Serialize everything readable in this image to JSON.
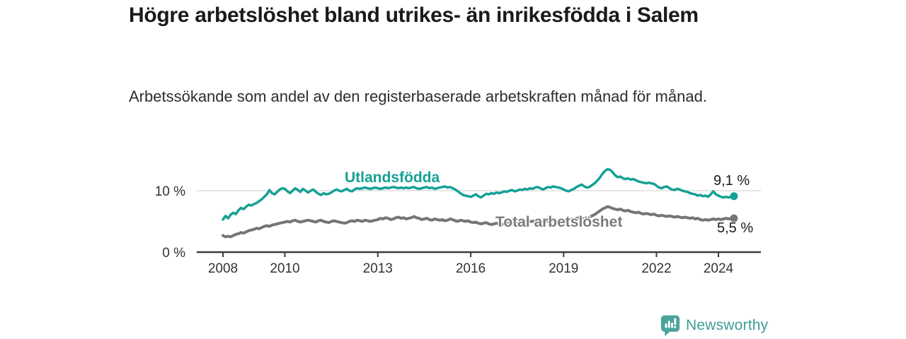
{
  "header": {
    "title": "Högre arbetslöshet bland utrikes- än inrikesfödda i Salem",
    "subtitle": "Arbetssökande som andel av den registerbaserade arbetskraften månad för månad."
  },
  "colors": {
    "series_foreign": "#16A195",
    "series_total": "#757579",
    "grid": "#d8d8d8",
    "axis": "#3d3d3d",
    "title_text": "#1a1a1a",
    "logo": "#4BA39B",
    "wordmark": "#3F9D96"
  },
  "chart_data": {
    "type": "line",
    "title": "",
    "xlabel": "",
    "ylabel": "",
    "x_unit": "year-month",
    "x_start_year": 2008,
    "points_per_year": 12,
    "x_end": "2024-07",
    "xlim": [
      2007.2,
      2025.3
    ],
    "ylim": [
      0,
      15
    ],
    "grid_values": [
      10
    ],
    "y_ticks": [
      {
        "value": 0,
        "label": "0 %"
      },
      {
        "value": 10,
        "label": "10 %"
      }
    ],
    "x_ticks": [
      {
        "value": 2008,
        "label": "2008"
      },
      {
        "value": 2010,
        "label": "2010"
      },
      {
        "value": 2013,
        "label": "2013"
      },
      {
        "value": 2016,
        "label": "2016"
      },
      {
        "value": 2019,
        "label": "2019"
      },
      {
        "value": 2022,
        "label": "2022"
      },
      {
        "value": 2024,
        "label": "2024"
      }
    ],
    "series": [
      {
        "name": "Utlandsfödda",
        "color": "#16A195",
        "width": 3.5,
        "end_label": "9,1 %",
        "end_value": 9.1,
        "values": [
          5.3,
          5.9,
          5.5,
          6.1,
          6.4,
          6.2,
          6.8,
          7.2,
          7.0,
          7.4,
          7.7,
          7.6,
          7.8,
          8.0,
          8.3,
          8.6,
          9.0,
          9.4,
          10.1,
          9.6,
          9.4,
          9.8,
          10.2,
          10.4,
          10.3,
          9.9,
          9.6,
          10.0,
          10.4,
          10.1,
          9.8,
          10.3,
          10.0,
          9.7,
          10.0,
          10.2,
          9.8,
          9.5,
          9.3,
          9.6,
          9.4,
          9.5,
          9.7,
          10.0,
          10.2,
          10.0,
          9.9,
          10.1,
          10.3,
          10.0,
          9.9,
          10.2,
          10.4,
          10.3,
          10.4,
          10.5,
          10.4,
          10.3,
          10.4,
          10.5,
          10.4,
          10.3,
          10.4,
          10.5,
          10.4,
          10.5,
          10.6,
          10.5,
          10.4,
          10.5,
          10.4,
          10.5,
          10.4,
          10.5,
          10.6,
          10.4,
          10.3,
          10.4,
          10.5,
          10.6,
          10.4,
          10.5,
          10.3,
          10.4,
          10.5,
          10.6,
          10.7,
          10.5,
          10.6,
          10.4,
          10.2,
          9.9,
          9.6,
          9.3,
          9.2,
          9.1,
          9.0,
          9.2,
          9.4,
          9.1,
          8.9,
          9.2,
          9.5,
          9.4,
          9.6,
          9.5,
          9.7,
          9.6,
          9.7,
          9.9,
          9.8,
          10.0,
          10.1,
          9.9,
          10.0,
          10.2,
          10.1,
          10.3,
          10.2,
          10.4,
          10.3,
          10.5,
          10.6,
          10.4,
          10.2,
          10.4,
          10.6,
          10.5,
          10.7,
          10.6,
          10.5,
          10.4,
          10.2,
          10.0,
          9.9,
          10.1,
          10.3,
          10.6,
          10.8,
          11.0,
          10.7,
          10.5,
          10.6,
          10.9,
          11.2,
          11.6,
          12.1,
          12.7,
          13.2,
          13.5,
          13.4,
          13.0,
          12.5,
          12.2,
          12.3,
          12.0,
          11.9,
          12.0,
          11.8,
          11.9,
          11.7,
          11.5,
          11.4,
          11.3,
          11.2,
          11.3,
          11.2,
          11.1,
          10.8,
          10.5,
          10.4,
          10.6,
          10.7,
          10.4,
          10.2,
          10.1,
          10.3,
          10.2,
          10.0,
          9.9,
          9.8,
          9.6,
          9.5,
          9.4,
          9.2,
          9.3,
          9.1,
          9.2,
          9.0,
          9.4,
          9.9,
          9.4,
          9.2,
          9.0,
          8.9,
          9.0,
          8.9,
          9.0,
          9.1
        ]
      },
      {
        "name": "Total arbetslöshet",
        "color": "#757579",
        "width": 4,
        "end_label": "5,5 %",
        "end_value": 5.5,
        "values": [
          2.7,
          2.5,
          2.6,
          2.5,
          2.7,
          2.9,
          3.0,
          3.2,
          3.1,
          3.3,
          3.5,
          3.6,
          3.7,
          3.9,
          3.8,
          4.0,
          4.2,
          4.3,
          4.2,
          4.4,
          4.5,
          4.6,
          4.7,
          4.8,
          4.9,
          5.0,
          4.9,
          5.1,
          5.2,
          5.0,
          4.9,
          5.0,
          5.1,
          5.2,
          5.1,
          5.0,
          4.9,
          5.1,
          5.2,
          5.0,
          4.9,
          4.8,
          5.0,
          5.1,
          5.0,
          4.9,
          4.8,
          4.7,
          4.8,
          5.0,
          5.1,
          5.0,
          5.2,
          5.1,
          5.0,
          5.2,
          5.1,
          5.0,
          5.1,
          5.2,
          5.3,
          5.5,
          5.4,
          5.6,
          5.5,
          5.3,
          5.4,
          5.6,
          5.7,
          5.5,
          5.6,
          5.4,
          5.5,
          5.6,
          5.8,
          5.6,
          5.5,
          5.3,
          5.4,
          5.5,
          5.3,
          5.2,
          5.4,
          5.3,
          5.2,
          5.3,
          5.1,
          5.2,
          5.4,
          5.3,
          5.1,
          5.0,
          5.2,
          5.1,
          5.0,
          5.1,
          4.9,
          4.8,
          4.9,
          4.7,
          4.6,
          4.7,
          4.8,
          4.6,
          4.5,
          4.6,
          4.7,
          4.6,
          4.5,
          4.6,
          4.7,
          4.8,
          4.7,
          4.6,
          4.7,
          4.8,
          4.9,
          5.0,
          4.9,
          5.0,
          5.0,
          5.1,
          5.0,
          4.9,
          5.0,
          5.1,
          5.0,
          5.2,
          5.1,
          5.0,
          5.1,
          5.2,
          5.2,
          5.1,
          5.3,
          5.4,
          5.3,
          5.5,
          5.6,
          5.5,
          5.4,
          5.6,
          5.7,
          5.9,
          6.1,
          6.4,
          6.7,
          7.0,
          7.2,
          7.4,
          7.3,
          7.1,
          7.0,
          6.9,
          7.0,
          6.8,
          6.7,
          6.8,
          6.6,
          6.5,
          6.4,
          6.5,
          6.3,
          6.2,
          6.3,
          6.2,
          6.1,
          6.2,
          6.0,
          5.9,
          6.0,
          5.9,
          5.8,
          5.9,
          5.8,
          5.7,
          5.8,
          5.7,
          5.6,
          5.7,
          5.6,
          5.5,
          5.6,
          5.4,
          5.5,
          5.3,
          5.2,
          5.3,
          5.2,
          5.3,
          5.4,
          5.3,
          5.4,
          5.3,
          5.4,
          5.5,
          5.4,
          5.5,
          5.5
        ]
      }
    ]
  },
  "footer": {
    "brand": "Newsworthy"
  }
}
